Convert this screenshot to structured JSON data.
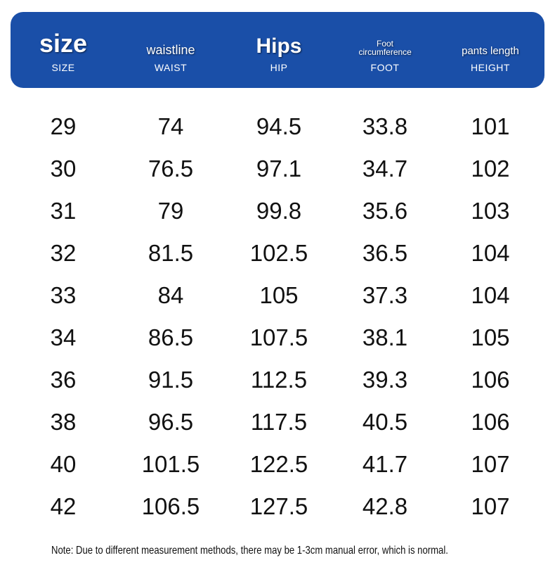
{
  "header": {
    "columns": [
      {
        "title": "size",
        "subtitle": "SIZE"
      },
      {
        "title": "waistline",
        "subtitle": "WAIST"
      },
      {
        "title": "Hips",
        "subtitle": "HIP"
      },
      {
        "title": "Foot circumference",
        "subtitle": "FOOT"
      },
      {
        "title": "pants length",
        "subtitle": "HEIGHT"
      }
    ]
  },
  "table": {
    "rows": [
      [
        29,
        74,
        94.5,
        33.8,
        101
      ],
      [
        30,
        76.5,
        97.1,
        34.7,
        102
      ],
      [
        31,
        79,
        99.8,
        35.6,
        103
      ],
      [
        32,
        81.5,
        102.5,
        36.5,
        104
      ],
      [
        33,
        84,
        105,
        37.3,
        104
      ],
      [
        34,
        86.5,
        107.5,
        38.1,
        105
      ],
      [
        36,
        91.5,
        112.5,
        39.3,
        106
      ],
      [
        38,
        96.5,
        117.5,
        40.5,
        106
      ],
      [
        40,
        101.5,
        122.5,
        41.7,
        107
      ],
      [
        42,
        106.5,
        127.5,
        42.8,
        107
      ]
    ]
  },
  "note": "Note: Due to different measurement methods, there may be 1-3cm manual error, which is normal."
}
